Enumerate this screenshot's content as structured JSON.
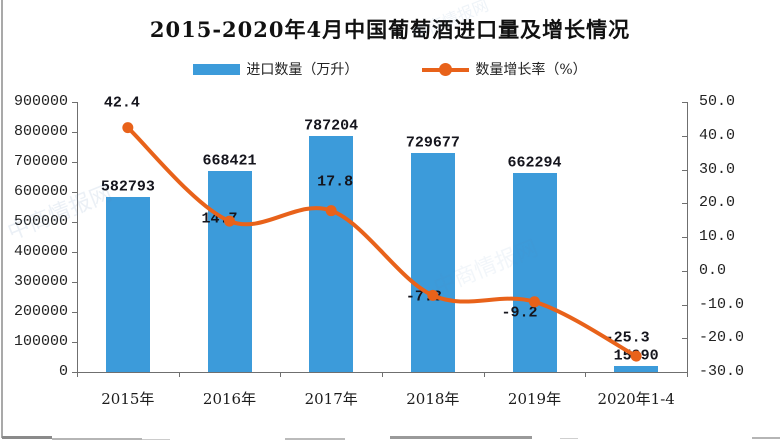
{
  "title": "2015-2020年4月中国葡萄酒进口量及增长情况",
  "legend": {
    "bar_label": "进口数量（万升）",
    "line_label": "数量增长率（%）"
  },
  "watermark_text": "中商情报网",
  "colors": {
    "bar": "#3C9BDA",
    "line": "#E8621A",
    "axis": "#6f6f6f",
    "label_text": "#15151d"
  },
  "chart_data": {
    "type": "bar",
    "subtype": "bar+line combo",
    "title": "2015-2020年4月中国葡萄酒进口量及增长情况",
    "categories": [
      "2015年",
      "2016年",
      "2017年",
      "2018年",
      "2019年",
      "2020年1-4"
    ],
    "series": [
      {
        "name": "进口数量（万升）",
        "type": "bar",
        "axis": "left",
        "color": "#3C9BDA",
        "values": [
          582793,
          668421,
          787204,
          729677,
          662294,
          15990
        ]
      },
      {
        "name": "数量增长率（%）",
        "type": "line",
        "axis": "right",
        "color": "#E8621A",
        "values": [
          42.4,
          14.7,
          17.8,
          -7.3,
          -9.2,
          -25.3
        ]
      }
    ],
    "left_axis": {
      "min": 0,
      "max": 900000,
      "step": 100000,
      "decimals": 0
    },
    "right_axis": {
      "min": -30,
      "max": 50,
      "step": 10,
      "decimals": 1
    },
    "grid": false,
    "legend_position": "top"
  }
}
